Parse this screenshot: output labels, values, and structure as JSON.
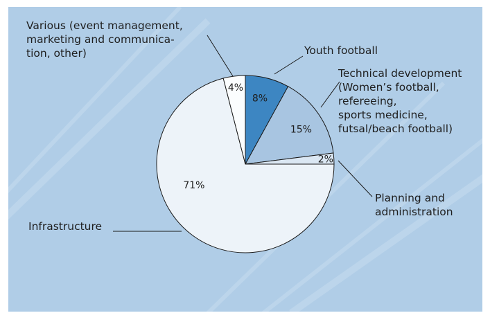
{
  "chart_data": {
    "type": "pie",
    "start_angle": "12 o'clock",
    "direction": "clockwise",
    "slices": [
      {
        "label": "Youth football",
        "value": 8,
        "pct_label": "8%",
        "color": "#3d86c2"
      },
      {
        "label": "Technical development\n(Women’s football,\nrefereeing,\nsports medicine,\nfutsal/beach football)",
        "value": 15,
        "pct_label": "15%",
        "color": "#a8c5e1"
      },
      {
        "label": "Planning and\nadministration",
        "value": 2,
        "pct_label": "2%",
        "color": "#dbe7f3"
      },
      {
        "label": "Infrastructure",
        "value": 71,
        "pct_label": "71%",
        "color": "#edf3f9"
      },
      {
        "label": "Various (event management,\nmarketing and communica-\ntion, other)",
        "value": 4,
        "pct_label": "4%",
        "color": "#fbfdfe"
      }
    ]
  },
  "colors": {
    "panel_background": "#b0cde7",
    "panel_stripes": "#c6dcef",
    "slice_stroke": "#1a1a1a",
    "leader_line": "#1a1a1a"
  }
}
